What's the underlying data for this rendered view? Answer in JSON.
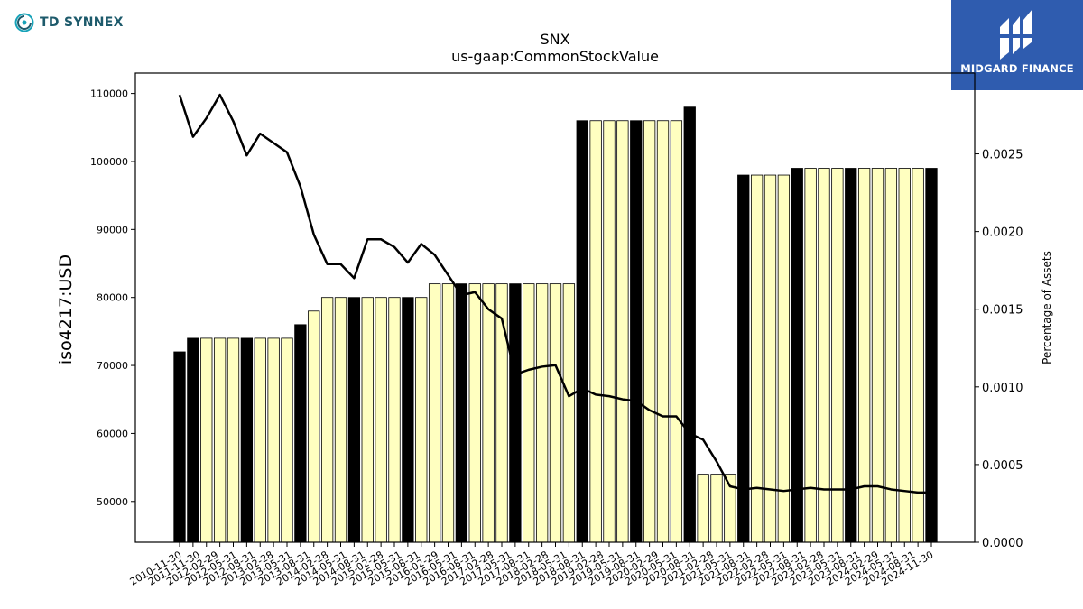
{
  "branding": {
    "left_logo_text": "TD SYNNEX",
    "right_logo_text": "MIDGARD FINANCE",
    "left_icon": "td-synnex-logo-icon",
    "right_icon": "midgard-finance-logo-icon",
    "left_color": "#1d5a6b",
    "right_bg_color": "#2f5caf"
  },
  "chart_data": {
    "type": "bar",
    "title": "SNX",
    "subtitle": "us-gaap:CommonStockValue",
    "ylabel": "iso4217:USD",
    "y2label": "Percentage of Assets",
    "ylim": [
      44000,
      113000
    ],
    "y2lim": [
      0,
      0.00302
    ],
    "y_ticks": [
      "50000",
      "60000",
      "70000",
      "80000",
      "90000",
      "100000",
      "110000"
    ],
    "y2_ticks": [
      "0.0000",
      "0.0005",
      "0.0010",
      "0.0015",
      "0.0020",
      "0.0025"
    ],
    "categories": [
      "2010-11-30",
      "2011-02-28",
      "2011-05-31",
      "2011-08-31",
      "2011-11-30",
      "2012-02-29",
      "2012-05-31",
      "2012-08-31",
      "2012-11-30",
      "2013-02-28",
      "2013-05-31",
      "2013-08-31",
      "2013-11-30",
      "2014-02-28",
      "2014-05-31",
      "2014-08-31",
      "2014-11-30",
      "2015-02-28",
      "2015-05-31",
      "2015-08-31",
      "2015-11-30",
      "2016-02-29",
      "2016-05-31",
      "2016-08-31",
      "2016-11-30",
      "2017-02-28",
      "2017-05-31",
      "2017-08-31",
      "2017-11-30",
      "2018-02-28",
      "2018-05-31",
      "2018-08-31",
      "2018-11-30",
      "2019-02-28",
      "2019-05-31",
      "2019-08-31",
      "2019-11-30",
      "2020-02-29",
      "2020-05-31",
      "2020-08-31",
      "2020-11-30",
      "2021-02-28",
      "2021-05-31",
      "2021-08-31",
      "2021-11-30",
      "2022-02-28",
      "2022-05-31",
      "2022-08-31",
      "2022-11-30",
      "2023-02-28",
      "2023-05-31",
      "2023-08-31",
      "2023-11-30",
      "2024-02-29",
      "2024-05-31",
      "2024-08-31",
      "2024-11-30"
    ],
    "x_tick_labels": [
      "2010-11-30",
      "2011-11-30",
      "2012-02-29",
      "2012-05-31",
      "2012-08-31",
      "2013-02-28",
      "2013-05-31",
      "2013-08-31",
      "2014-02-28",
      "2014-05-31",
      "2014-08-31",
      "2015-02-28",
      "2015-05-31",
      "2015-08-31",
      "2016-02-29",
      "2016-05-31",
      "2016-08-31",
      "2017-02-28",
      "2017-05-31",
      "2017-08-31",
      "2018-02-28",
      "2018-05-31",
      "2018-08-31",
      "2019-02-28",
      "2019-05-31",
      "2019-08-31",
      "2020-02-29",
      "2020-05-31",
      "2020-08-31",
      "2021-02-28",
      "2021-05-31",
      "2021-08-31",
      "2022-02-28",
      "2022-05-31",
      "2022-08-31",
      "2023-02-28",
      "2023-05-31",
      "2023-08-31",
      "2024-02-29",
      "2024-05-31",
      "2024-08-31",
      "2024-11-30"
    ],
    "series": [
      {
        "kind": "bar",
        "values": [
          72000,
          74000,
          74000,
          74000,
          74000,
          74000,
          74000,
          74000,
          74000,
          76000,
          78000,
          80000,
          80000,
          80000,
          80000,
          80000,
          80000,
          80000,
          80000,
          82000,
          82000,
          82000,
          82000,
          82000,
          82000,
          82000,
          82000,
          82000,
          82000,
          82000,
          106000,
          106000,
          106000,
          106000,
          106000,
          106000,
          106000,
          106000,
          108000,
          54000,
          54000,
          54000,
          98000,
          98000,
          98000,
          98000,
          99000,
          99000,
          99000,
          99000,
          99000,
          99000,
          99000,
          99000,
          99000,
          99000,
          99000
        ],
        "highlight": [
          true,
          true,
          false,
          false,
          false,
          true,
          false,
          false,
          false,
          true,
          false,
          false,
          false,
          true,
          false,
          false,
          false,
          true,
          false,
          false,
          false,
          true,
          false,
          false,
          false,
          true,
          false,
          false,
          false,
          false,
          true,
          false,
          false,
          false,
          true,
          false,
          false,
          false,
          true,
          false,
          false,
          false,
          true,
          false,
          false,
          false,
          true,
          false,
          false,
          false,
          true,
          false,
          false,
          false,
          false,
          false,
          true
        ]
      },
      {
        "kind": "line",
        "axis": "right",
        "values": [
          0.00288,
          0.00261,
          0.00273,
          0.00288,
          0.00271,
          0.00249,
          0.00263,
          0.00257,
          0.00251,
          0.00229,
          0.00198,
          0.00179,
          0.00179,
          0.0017,
          0.00195,
          0.00195,
          0.0019,
          0.0018,
          0.00192,
          0.00185,
          0.00172,
          0.00159,
          0.00161,
          0.0015,
          0.00144,
          0.00108,
          0.00111,
          0.00113,
          0.00114,
          0.00094,
          0.00099,
          0.00095,
          0.00094,
          0.00092,
          0.00091,
          0.00085,
          0.00081,
          0.00081,
          0.0007,
          0.00066,
          0.00052,
          0.00036,
          0.00034,
          0.00035,
          0.00034,
          0.00033,
          0.00034,
          0.00035,
          0.00034,
          0.00034,
          0.00034,
          0.00036,
          0.00036,
          0.00034,
          0.00033,
          0.00032,
          0.00032
        ]
      }
    ],
    "colors": {
      "bar_fill": "#ffffc0",
      "bar_highlight": "#000000",
      "bar_stroke": "#000000",
      "line": "#000000"
    },
    "grid": false,
    "legend": "none"
  }
}
